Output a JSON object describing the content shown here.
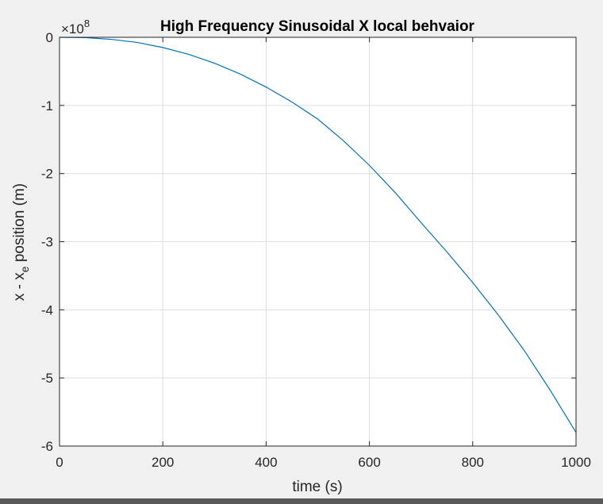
{
  "chart_data": {
    "type": "line",
    "title": "High Frequency Sinusoidal X local behvaior",
    "xlabel": "time (s)",
    "ylabel_main": "x - x",
    "ylabel_sub": "e",
    "ylabel_rest": " position (m)",
    "y_exponent_base": "×10",
    "y_exponent_power": "8",
    "xlim": [
      0,
      1000
    ],
    "ylim": [
      -6,
      0
    ],
    "x_ticks": [
      0,
      200,
      400,
      600,
      800,
      1000
    ],
    "y_ticks": [
      0,
      -1,
      -2,
      -3,
      -4,
      -5,
      -6
    ],
    "x_tick_labels": [
      "0",
      "200",
      "400",
      "600",
      "800",
      "1000"
    ],
    "y_tick_labels": [
      "0",
      "-1",
      "-2",
      "-3",
      "-4",
      "-5",
      "-6"
    ],
    "grid": true,
    "line_color": "#0072bd",
    "series": [
      {
        "x": [
          0,
          50,
          100,
          150,
          200,
          250,
          300,
          350,
          400,
          450,
          500,
          550,
          600,
          650,
          700,
          750,
          800,
          850,
          900,
          950,
          1000
        ],
        "y": [
          0,
          -0.005,
          -0.03,
          -0.075,
          -0.15,
          -0.25,
          -0.38,
          -0.54,
          -0.73,
          -0.95,
          -1.2,
          -1.52,
          -1.88,
          -2.28,
          -2.72,
          -3.15,
          -3.6,
          -4.08,
          -4.6,
          -5.18,
          -5.8
        ]
      }
    ]
  }
}
